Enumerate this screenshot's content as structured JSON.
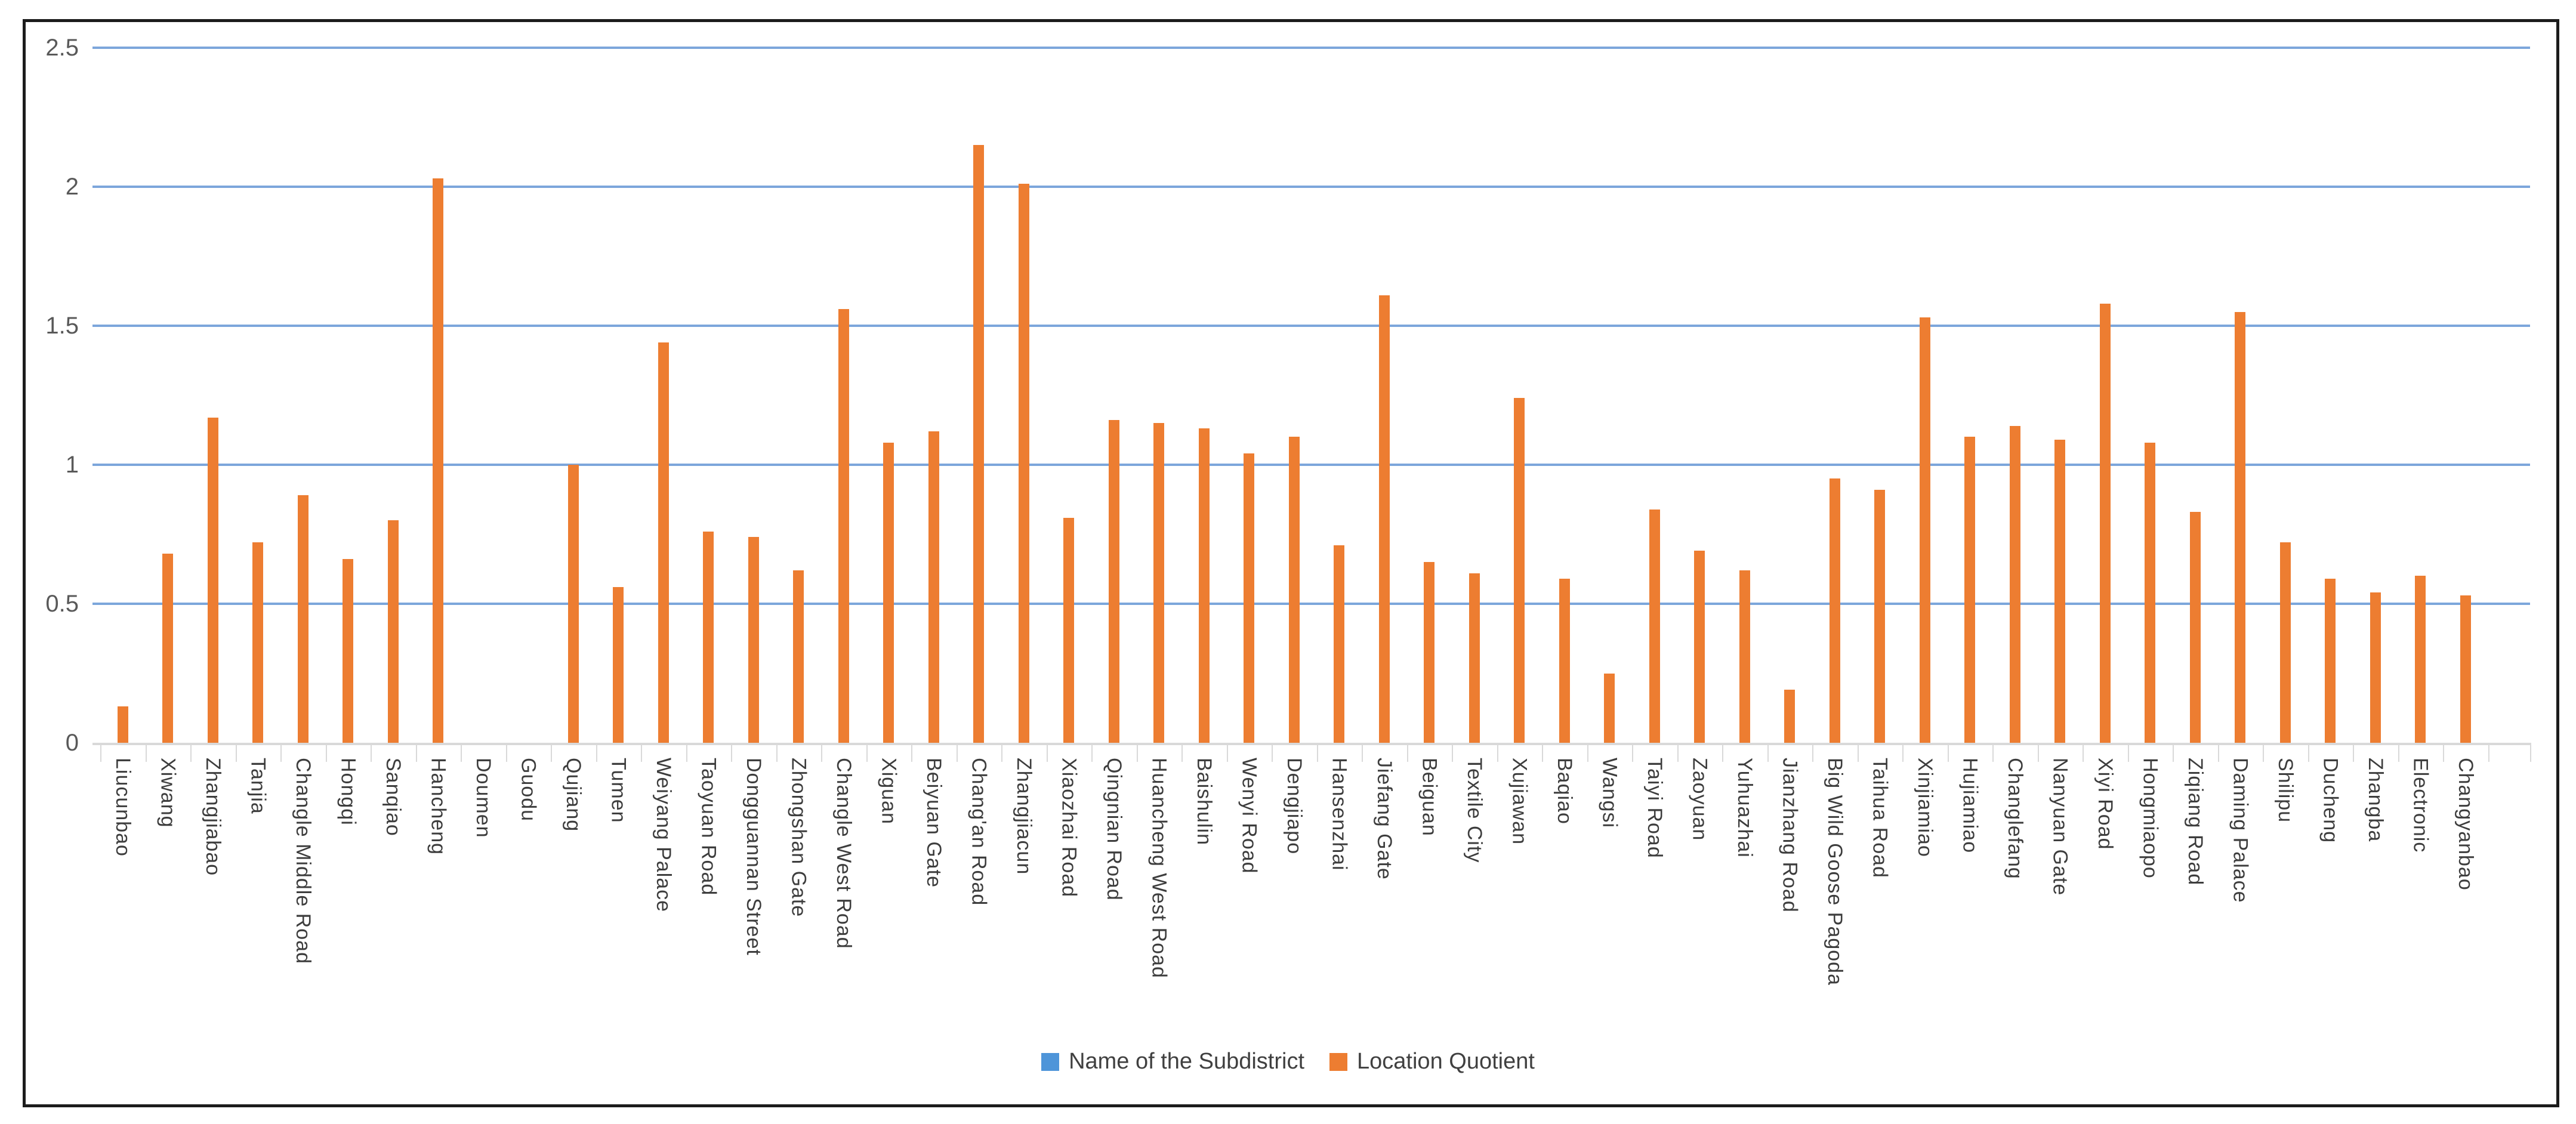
{
  "colors": {
    "bar": "#ED7D31",
    "gridline": "#7CA6DB",
    "axis_line": "#D9D9D9",
    "tick": "#D9D9D9",
    "y_label_text": "#595959",
    "x_label_text": "#3D3D3D",
    "legend_blue": "#4E95D9",
    "frame_border": "#1C1C1C"
  },
  "y_axis": {
    "tick_labels": [
      "0",
      "0.5",
      "1",
      "1.5",
      "2",
      "2.5"
    ]
  },
  "legend": [
    {
      "label": "Name of the Subdistrict",
      "color": "#4E95D9"
    },
    {
      "label": "Location Quotient",
      "color": "#ED7D31"
    }
  ],
  "chart_data": {
    "type": "bar",
    "title": "",
    "xlabel": "",
    "ylabel": "",
    "ylim": [
      0,
      2.5
    ],
    "ystep": 0.5,
    "grid": true,
    "legend_position": "bottom",
    "categories": [
      "Liucunbao",
      "Xiwang",
      "Zhangjiabao",
      "Tanjia",
      "Changle Middle Road",
      "Hongqi",
      "Sanqiao",
      "Hancheng",
      "Doumen",
      "Guodu",
      "Qujiang",
      "Tumen",
      "Weiyang Palace",
      "Taoyuan Road",
      "Dongguannan Street",
      "Zhongshan Gate",
      "Changle West Road",
      "Xiguan",
      "Beiyuan Gate",
      "Chang'an Road",
      "Zhangjiacun",
      "Xiaozhai Road",
      "Qingnian Road",
      "Huancheng West Road",
      "Baishulin",
      "Wenyi Road",
      "Dengjiapo",
      "Hansenzhai",
      "Jiefang Gate",
      "Beiguan",
      "Textile City",
      "Xujiawan",
      "Baqiao",
      "Wangsi",
      "Taiyi Road",
      "Zaoyuan",
      "Yuhuazhai",
      "Jianzhang Road",
      "Big Wild Goose Pagoda",
      "Taihua Road",
      "Xinjiamiao",
      "Hujiamiao",
      "Changlefang",
      "Nanyuan Gate",
      "Xiyi Road",
      "Hongmiaopo",
      "Ziqiang Road",
      "Daming Palace",
      "Shilipu",
      "Ducheng",
      "Zhangba",
      "Electronic",
      "Changyanbao"
    ],
    "series": [
      {
        "name": "Location Quotient",
        "values": [
          0.13,
          0.68,
          1.17,
          0.72,
          0.89,
          0.66,
          0.8,
          2.03,
          0,
          0,
          1.0,
          0.56,
          1.44,
          0.76,
          0.74,
          0.62,
          1.56,
          1.08,
          1.12,
          2.15,
          2.01,
          0.81,
          1.16,
          1.15,
          1.13,
          1.04,
          1.1,
          0.71,
          1.61,
          0.65,
          0.61,
          1.24,
          0.59,
          0.25,
          0.84,
          0.69,
          0.62,
          0.19,
          0.95,
          0.91,
          1.53,
          1.1,
          1.14,
          1.09,
          1.58,
          1.08,
          0.83,
          1.55,
          0.72,
          0.59,
          0.54,
          0.6,
          0.53
        ]
      }
    ]
  }
}
